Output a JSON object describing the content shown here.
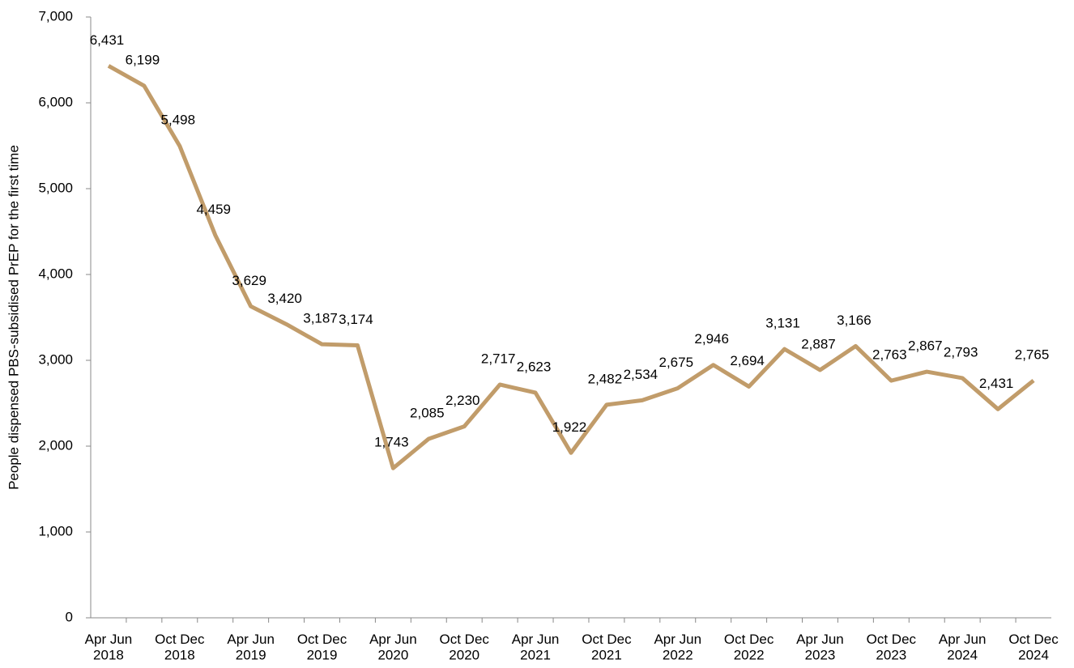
{
  "chart_data": {
    "type": "line",
    "y_label": "People dispensed PBS-subsidised PrEP for the first time",
    "categories": [
      "Apr Jun\n2018",
      null,
      "Oct Dec\n2018",
      null,
      "Apr Jun\n2019",
      null,
      "Oct Dec\n2019",
      null,
      "Apr Jun\n2020",
      null,
      "Oct Dec\n2020",
      null,
      "Apr Jun\n2021",
      null,
      "Oct Dec\n2021",
      null,
      "Apr Jun\n2022",
      null,
      "Oct Dec\n2022",
      null,
      "Apr Jun\n2023",
      null,
      "Oct Dec\n2023",
      null,
      "Apr Jun\n2024",
      null,
      "Oct Dec\n2024"
    ],
    "values": [
      6431,
      6199,
      5498,
      4459,
      3629,
      3420,
      3187,
      3174,
      1743,
      2085,
      2230,
      2717,
      2623,
      1922,
      2482,
      2534,
      2675,
      2946,
      2694,
      3131,
      2887,
      3166,
      2763,
      2867,
      2793,
      2431,
      2765
    ],
    "value_labels": [
      "6,431",
      "6,199",
      "5,498",
      "4,459",
      "3,629",
      "3,420",
      "3,187",
      "3,174",
      "1,743",
      "2,085",
      "2,230",
      "2,717",
      "2,623",
      "1,922",
      "2,482",
      "2,534",
      "2,675",
      "2,946",
      "2,694",
      "3,131",
      "2,887",
      "3,166",
      "2,763",
      "2,867",
      "2,793",
      "2,431",
      "2,765"
    ],
    "color": "#c19c6a",
    "ylim": [
      0,
      7000
    ],
    "yticks": [
      0,
      {
        "value": 1000,
        "label": "1,000"
      },
      {
        "value": 2000,
        "label": "2,000"
      },
      {
        "value": 3000,
        "label": "3,000"
      },
      {
        "value": 4000,
        "label": "4,000"
      },
      {
        "value": 5000,
        "label": "5,000"
      },
      {
        "value": 6000,
        "label": "6,000"
      },
      {
        "value": 7000,
        "label": "7,000"
      }
    ],
    "grid": false
  }
}
